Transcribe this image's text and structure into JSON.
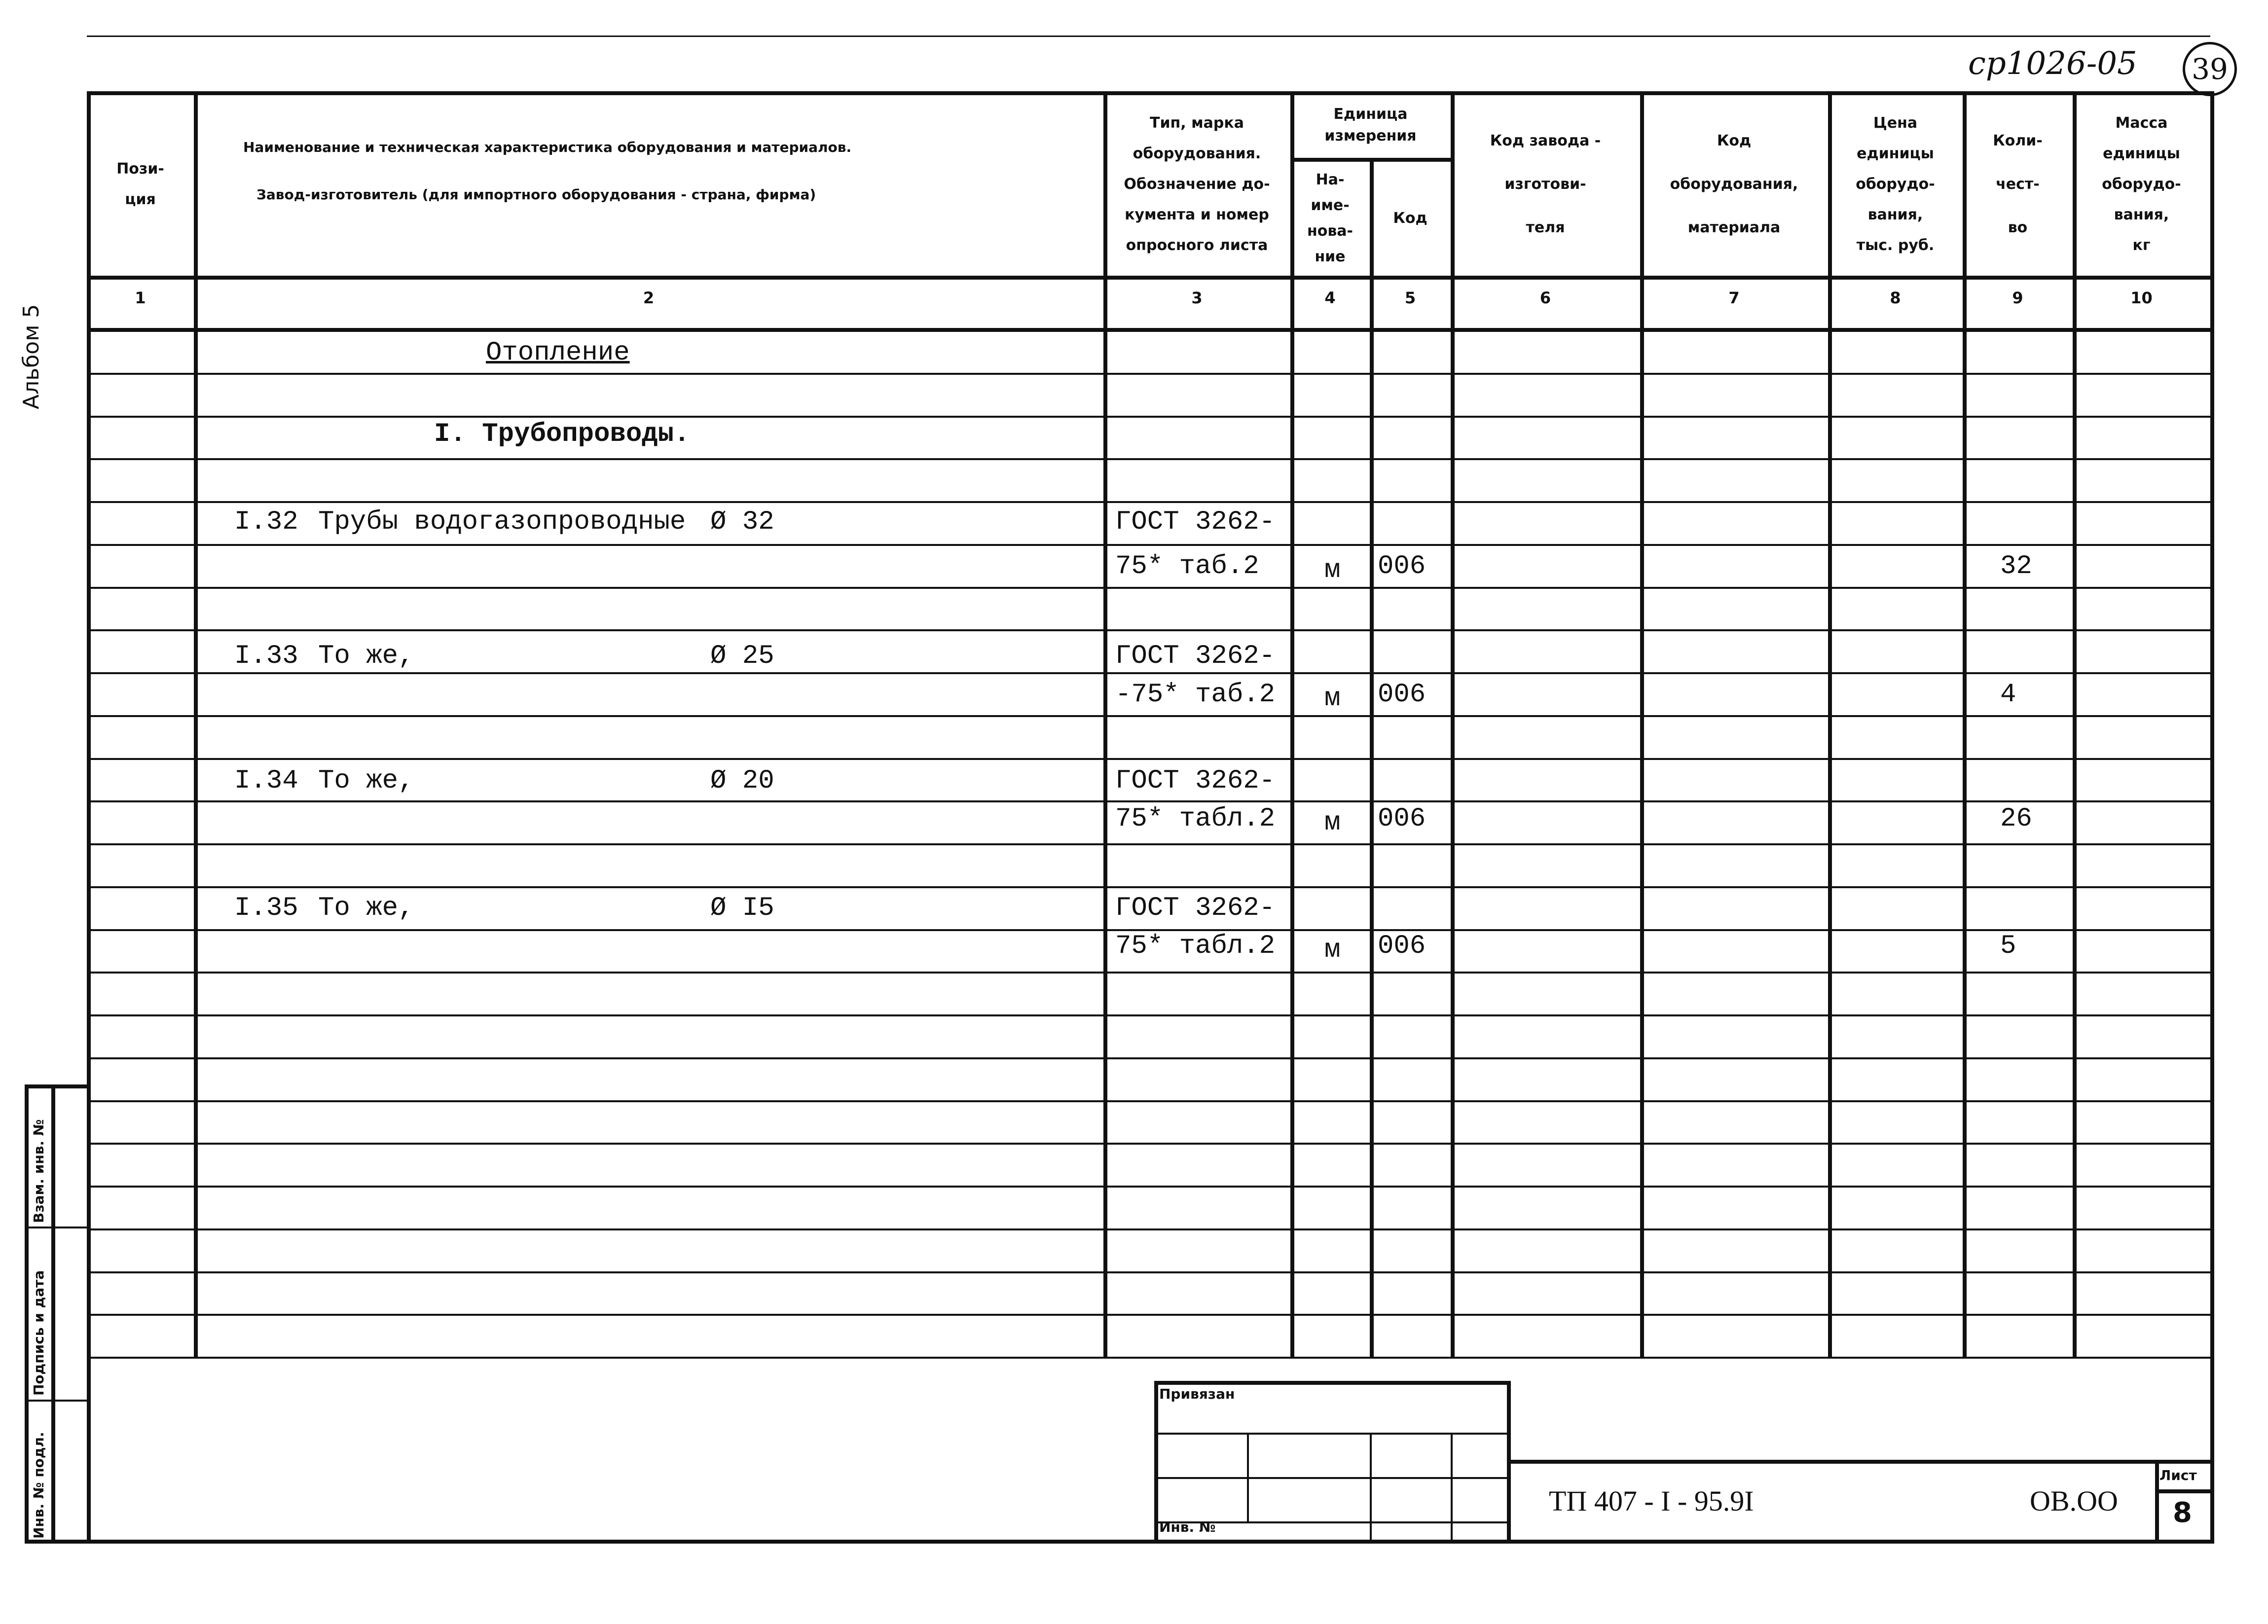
{
  "stamp": {
    "code": "ср1026-05",
    "page_circle": "39"
  },
  "side": {
    "album": "Альбом 5",
    "strip": [
      "Взам. инв. №",
      "Подпись и дата",
      "Инв. № подл."
    ]
  },
  "header": {
    "c1": [
      "Пози-",
      "ция"
    ],
    "c2": [
      "Наименование и техническая характеристика оборудования и материалов.",
      "Завод-изготовитель (для импортного оборудования - страна, фирма)"
    ],
    "c3": [
      "Тип, марка",
      "оборудования.",
      "Обозначение до-",
      "кумента и номер",
      "опросного листа"
    ],
    "c45": [
      "Единица",
      "измерения"
    ],
    "c4": [
      "На-",
      "име-",
      "нова-",
      "ние"
    ],
    "c5": [
      "Код"
    ],
    "c6": [
      "Код завода -",
      "изготови-",
      "теля"
    ],
    "c7": [
      "Код",
      "оборудования,",
      "материала"
    ],
    "c8": [
      "Цена",
      "единицы",
      "оборудо-",
      "вания,",
      "тыс. руб."
    ],
    "c9": [
      "Коли-",
      "чест-",
      "во"
    ],
    "c10": [
      "Масса",
      "единицы",
      "оборудо-",
      "вания,",
      "кг"
    ],
    "numbers": [
      "1",
      "2",
      "3",
      "4",
      "5",
      "6",
      "7",
      "8",
      "9",
      "10"
    ]
  },
  "body": {
    "section": "Отопление",
    "subsection": "I. Трубопроводы.",
    "items": [
      {
        "pos": "I.32",
        "name": "Трубы водогазопроводные",
        "dia": "Ø 32",
        "doc1": "ГОСТ 3262-",
        "doc2": "75* таб.2",
        "unit": "м",
        "code": "006",
        "qty": "32"
      },
      {
        "pos": "I.33",
        "name": "То же,",
        "dia": "Ø 25",
        "doc1": "ГОСТ 3262-",
        "doc2": "-75* таб.2",
        "unit": "м",
        "code": "006",
        "qty": "4"
      },
      {
        "pos": "I.34",
        "name": "То же,",
        "dia": "Ø 20",
        "doc1": "ГОСТ 3262-",
        "doc2": "75* табл.2",
        "unit": "м",
        "code": "006",
        "qty": "26"
      },
      {
        "pos": "I.35",
        "name": "То же,",
        "dia": "Ø I5",
        "doc1": "ГОСТ 3262-",
        "doc2": "75* табл.2",
        "unit": "м",
        "code": "006",
        "qty": "5"
      }
    ]
  },
  "title_block": {
    "bound": "Привязан",
    "inv": "Инв. №",
    "doc_code": "ТП 407 - I - 95.9I",
    "section_code": "ОВ.ОО",
    "sheet_label": "Лист",
    "sheet": "8"
  }
}
